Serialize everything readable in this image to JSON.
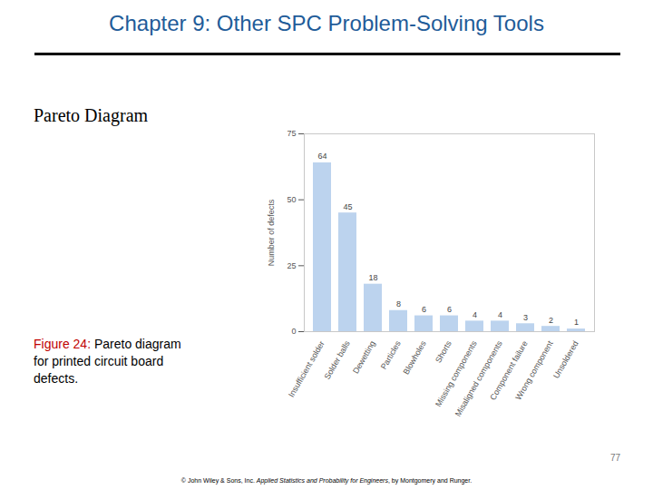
{
  "slide": {
    "header": "Chapter 9: Other SPC Problem-Solving Tools",
    "heading": "Pareto Diagram",
    "caption_label": "Figure 24:",
    "caption": "Pareto diagram for printed circuit board defects.",
    "page_number": 77,
    "footer_prefix": "© John Wiley & Sons, Inc. ",
    "footer_italic": "Applied Statistics and Probability for Engineers",
    "footer_suffix": ", by Montgomery and Runger."
  },
  "chart_data": {
    "type": "bar",
    "categories": [
      "Insufficient solder",
      "Solder balls",
      "Dewetting",
      "Particles",
      "Blowholes",
      "Shorts",
      "Missing components",
      "Misaligned components",
      "Component failure",
      "Wrong component",
      "Unsoldered"
    ],
    "values": [
      64,
      45,
      18,
      8,
      6,
      6,
      4,
      4,
      3,
      2,
      1
    ],
    "color": "#bcd3ee",
    "y_label": "Number of defects",
    "ylim": [
      0,
      75
    ],
    "yticks": [
      0,
      25,
      50,
      75
    ],
    "grid": false,
    "data_labels": true
  }
}
